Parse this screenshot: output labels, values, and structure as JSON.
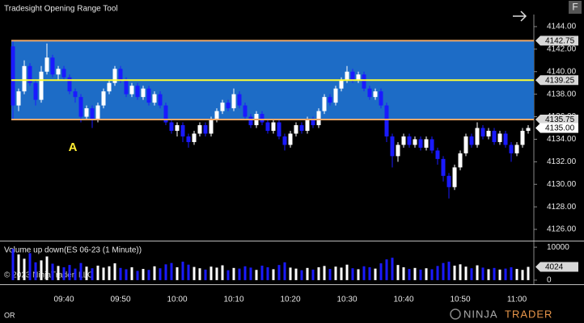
{
  "window": {
    "title": "Tradesight Opening Range Tool",
    "button": "F"
  },
  "chart_data": [
    {
      "type": "candlestick",
      "categories": [
        null,
        null,
        null,
        null,
        null,
        null,
        null,
        null,
        null,
        "09:40",
        null,
        null,
        null,
        null,
        null,
        null,
        null,
        null,
        null,
        "09:50",
        null,
        null,
        null,
        null,
        null,
        null,
        null,
        null,
        null,
        "10:00",
        null,
        null,
        null,
        null,
        null,
        null,
        null,
        null,
        null,
        "10:10",
        null,
        null,
        null,
        null,
        null,
        null,
        null,
        null,
        null,
        "10:20",
        null,
        null,
        null,
        null,
        null,
        null,
        null,
        null,
        null,
        "10:30",
        null,
        null,
        null,
        null,
        null,
        null,
        null,
        null,
        null,
        "10:40",
        null,
        null,
        null,
        null,
        null,
        null,
        null,
        null,
        null,
        "10:50",
        null,
        null,
        null,
        null,
        null,
        null,
        null,
        null,
        null,
        "11:00",
        null,
        null
      ],
      "open": [
        4142.25,
        4137,
        4138.25,
        4140.5,
        4139,
        4137.5,
        4140,
        4141.25,
        4139.75,
        4140.25,
        4139.5,
        4138.25,
        4137.75,
        4136,
        4136.75,
        4135.75,
        4137,
        4138.25,
        4139,
        4140.25,
        4139.25,
        4138,
        4138.75,
        4137.75,
        4138.5,
        4137.25,
        4138,
        4137,
        4135.5,
        4134.75,
        4135.25,
        4134.25,
        4133.75,
        4134.5,
        4135.25,
        4134.5,
        4135.75,
        4136.5,
        4137.25,
        4136.75,
        4138,
        4137,
        4136,
        4135.25,
        4136.25,
        4135.5,
        4134.75,
        4135.5,
        4134.25,
        4133.5,
        4134.5,
        4135.25,
        4134.75,
        4135.75,
        4135.25,
        4136.5,
        4137.75,
        4137.25,
        4138.5,
        4139.25,
        4140,
        4139.25,
        4139.75,
        4138.5,
        4137.75,
        4138.25,
        4137,
        4134.25,
        4132.5,
        4133.5,
        4134.25,
        4133.5,
        4134,
        4133.25,
        4134,
        4133,
        4132.25,
        4130.75,
        4129.75,
        4131.5,
        4132.75,
        4134.25,
        4133.5,
        4135,
        4134.25,
        4134.75,
        4133.75,
        4134.5,
        4133.5,
        4132.75,
        4133.5,
        4134.75
      ],
      "high": [
        4142.75,
        4138.5,
        4141,
        4140.75,
        4139.25,
        4140.5,
        4142.5,
        4141.5,
        4140.5,
        4140.5,
        4139.75,
        4138.5,
        4138,
        4137,
        4137,
        4137.25,
        4138.5,
        4139.25,
        4140.5,
        4140.5,
        4139.5,
        4139,
        4139,
        4138.75,
        4138.75,
        4138.25,
        4138.25,
        4137.25,
        4135.75,
        4135.5,
        4135.5,
        4134.5,
        4134.75,
        4135.5,
        4135.5,
        4136,
        4136.75,
        4137.5,
        4137.5,
        4138.5,
        4138.25,
        4137.25,
        4136.25,
        4136.5,
        4136.5,
        4135.75,
        4135.75,
        4135.75,
        4134.5,
        4134.75,
        4135.5,
        4135.5,
        4136,
        4136,
        4136.75,
        4138,
        4138,
        4138.75,
        4139.5,
        4140.5,
        4140.25,
        4140,
        4140,
        4138.75,
        4138.5,
        4138.5,
        4137.25,
        4134.5,
        4133.75,
        4134.5,
        4134.5,
        4134.25,
        4134.25,
        4134.25,
        4134.25,
        4133.25,
        4132.5,
        4131,
        4131.75,
        4133,
        4134.5,
        4134.5,
        4135.5,
        4135.25,
        4135,
        4135,
        4134.75,
        4134.75,
        4133.75,
        4133.75,
        4135,
        4135.25
      ],
      "low": [
        4135.75,
        4136.5,
        4138,
        4138.75,
        4137,
        4137.25,
        4139.75,
        4139.5,
        4139.25,
        4139.25,
        4138,
        4137.25,
        4135.5,
        4135.75,
        4135,
        4135.5,
        4136.75,
        4138,
        4138.75,
        4139,
        4137.75,
        4137.75,
        4137.5,
        4137.5,
        4137,
        4137,
        4136.75,
        4135.25,
        4134.5,
        4134.25,
        4133.75,
        4133.25,
        4133.5,
        4134.25,
        4134.25,
        4134.25,
        4135.5,
        4136.25,
        4136.5,
        4136.5,
        4136.75,
        4135.75,
        4135,
        4135,
        4135.25,
        4134.5,
        4134.5,
        4134,
        4133,
        4133.25,
        4134.25,
        4134.5,
        4134.5,
        4135,
        4135,
        4136.25,
        4137,
        4137,
        4138.25,
        4139,
        4139,
        4139,
        4138.25,
        4137.5,
        4137.5,
        4136.75,
        4133.75,
        4131.5,
        4132,
        4133.25,
        4133.25,
        4133.25,
        4133,
        4133,
        4132.75,
        4131.75,
        4130.25,
        4128.75,
        4129.5,
        4131.25,
        4132.5,
        4133.25,
        4133.25,
        4134,
        4134,
        4133.5,
        4133.5,
        4133.25,
        4132,
        4132.5,
        4133.25,
        4134.5
      ],
      "close": [
        4137,
        4138.25,
        4140.5,
        4139,
        4137.5,
        4140,
        4141.25,
        4139.75,
        4140.25,
        4139.5,
        4138.25,
        4137.75,
        4136,
        4136.75,
        4135.75,
        4137,
        4138.25,
        4139,
        4140.25,
        4139.25,
        4138,
        4138.75,
        4137.75,
        4138.5,
        4137.25,
        4138,
        4137,
        4135.5,
        4134.75,
        4135.25,
        4134.25,
        4133.75,
        4134.5,
        4135.25,
        4134.5,
        4135.75,
        4136.5,
        4137.25,
        4136.75,
        4138,
        4137,
        4136,
        4135.25,
        4136.25,
        4135.5,
        4134.75,
        4135.5,
        4134.25,
        4133.5,
        4134.5,
        4135.25,
        4134.75,
        4135.75,
        4135.25,
        4136.5,
        4137.75,
        4137.25,
        4138.5,
        4139.25,
        4140,
        4139.25,
        4139.75,
        4138.5,
        4137.75,
        4138.25,
        4137,
        4134.25,
        4132.5,
        4133.5,
        4134.25,
        4133.5,
        4134,
        4133.25,
        4134,
        4133,
        4132.25,
        4130.75,
        4129.75,
        4131.5,
        4132.75,
        4134.25,
        4133.5,
        4135,
        4134.25,
        4134.75,
        4133.75,
        4134.5,
        4133.5,
        4132.75,
        4133.5,
        4134.75,
        4135
      ],
      "up_color": "#ffffff",
      "down_color": "#1a1aff",
      "ylim": [
        4125,
        4145
      ],
      "yticks": [
        {
          "value": 4126,
          "label": "4126.00"
        },
        {
          "value": 4128,
          "label": "4128.00"
        },
        {
          "value": 4130,
          "label": "4130.00"
        },
        {
          "value": 4132,
          "label": "4132.00"
        },
        {
          "value": 4134,
          "label": "4134.00"
        },
        {
          "value": 4136,
          "label": "4136.00"
        },
        {
          "value": 4138,
          "label": "4138.00"
        },
        {
          "value": 4140,
          "label": "4140.00"
        },
        {
          "value": 4142,
          "label": "4142.00"
        },
        {
          "value": 4144,
          "label": "4144.00"
        }
      ],
      "opening_range": {
        "high": {
          "value": 4142.75,
          "label": "4142.75"
        },
        "mid": {
          "value": 4139.25,
          "label": "4139.25"
        },
        "low": {
          "value": 4135.75,
          "label": "4135.75"
        },
        "fill": "#1d6cc6",
        "edge_color": "#f0a868",
        "mid_color": "#ffff33"
      },
      "last_price": {
        "value": 4135,
        "label": "4135.00"
      },
      "annotation": "A"
    },
    {
      "type": "bar",
      "title": "Volume up down(ES 06-23 (1 Minute))",
      "values": [
        9500,
        7800,
        6500,
        8200,
        5400,
        6000,
        7200,
        5000,
        4300,
        3900,
        4600,
        3500,
        5200,
        4100,
        3600,
        4400,
        3800,
        4200,
        5100,
        3700,
        3300,
        3900,
        2800,
        3400,
        3100,
        4200,
        3600,
        4800,
        5200,
        3900,
        5600,
        4700,
        4000,
        3600,
        3200,
        4100,
        3800,
        4500,
        3000,
        3700,
        3500,
        4200,
        3800,
        3100,
        4400,
        3900,
        3300,
        4600,
        5400,
        3800,
        3500,
        3000,
        3700,
        3200,
        3900,
        4300,
        3400,
        4100,
        3800,
        4700,
        3600,
        3300,
        4200,
        3900,
        3500,
        5100,
        6300,
        6800,
        4600,
        3900,
        3400,
        3700,
        3200,
        3600,
        3300,
        4300,
        5200,
        5600,
        4400,
        4800,
        4100,
        3600,
        4500,
        3800,
        3300,
        3700,
        3200,
        3500,
        3900,
        3400,
        3100,
        4024
      ],
      "ylim": [
        -1250,
        11750
      ],
      "yticks": [
        0,
        10000
      ],
      "up_color": "#ffffff",
      "down_color": "#1a1aff"
    }
  ],
  "footer": {
    "copyright": "© 2023 NinjaTrader, LLC",
    "indicator": "OR",
    "logo_first": "NINJA",
    "logo_second": "TRADER"
  }
}
